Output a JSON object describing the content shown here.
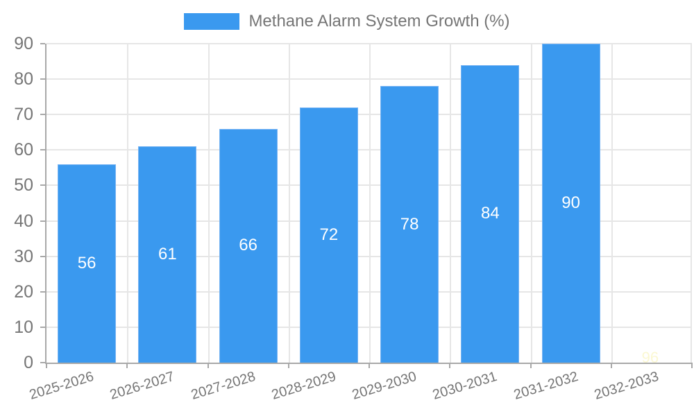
{
  "chart_data": {
    "type": "bar",
    "title": "Methane Alarm System Growth (%)",
    "legend_position": "top",
    "categories": [
      "2025-2026",
      "2026-2027",
      "2027-2028",
      "2028-2029",
      "2029-2030",
      "2030-2031",
      "2031-2032",
      "2032-2033"
    ],
    "series": [
      {
        "name": "Methane Alarm System Growth (%)",
        "values": [
          56,
          61,
          66,
          72,
          78,
          84,
          90,
          96
        ]
      }
    ],
    "data_labels_shown_in_bars": [
      56,
      61,
      66,
      72,
      78,
      84,
      90
    ],
    "faint_baseline_label": "96",
    "hidden_bar_index": 7,
    "xlabel": "",
    "ylabel": "",
    "ylim": [
      0,
      90
    ],
    "ytick_step": 10,
    "ytick_labels": [
      "0",
      "10",
      "20",
      "30",
      "40",
      "50",
      "60",
      "70",
      "80",
      "90"
    ],
    "grid": true,
    "colors": {
      "bar_fill": "#3a99ef",
      "bar_border": "#78b4f3",
      "grid_line": "#e6e6e6",
      "axis_line": "#a8a8a8",
      "tick_text": "#757575",
      "legend_text": "#757575",
      "bar_value_text": "#ffffff",
      "faint_label_text": "#fbf8d2",
      "background": "#ffffff"
    }
  }
}
